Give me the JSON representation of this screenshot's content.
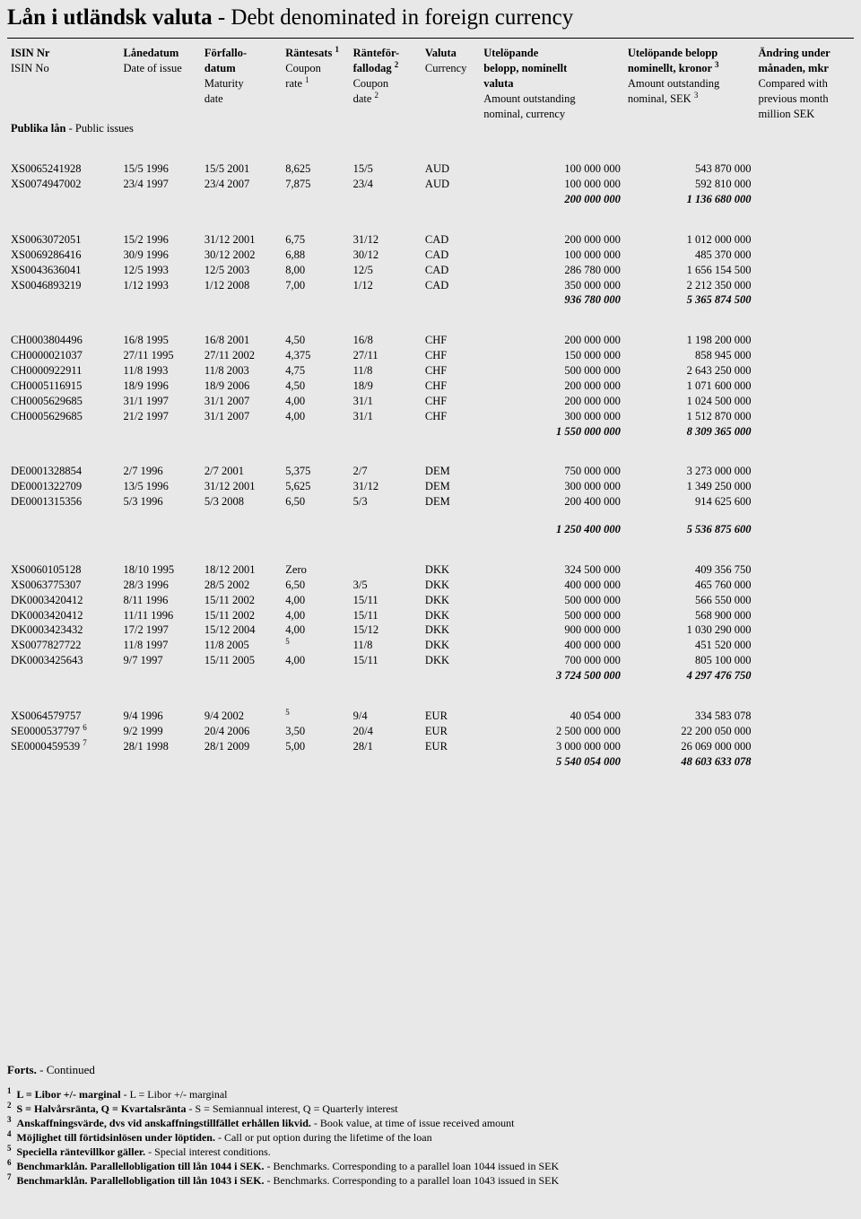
{
  "title": {
    "bold": "Lån i utländsk valuta",
    "rest": "  - Debt denominated in foreign currency"
  },
  "header": {
    "rows": [
      [
        {
          "t": "ISIN Nr",
          "b": true
        },
        {
          "t": "Lånedatum",
          "b": true
        },
        {
          "t": "Förfallo-",
          "b": true
        },
        {
          "t": "Räntesats <sup>1</sup>",
          "b": true
        },
        {
          "t": "Ränteför-",
          "b": true
        },
        {
          "t": "Valuta",
          "b": true
        },
        {
          "t": "Utelöpande",
          "b": true
        },
        {
          "t": "Utelöpande belopp",
          "b": true
        },
        {
          "t": "Ändring under",
          "b": true
        }
      ],
      [
        {
          "t": "ISIN No"
        },
        {
          "t": "Date of issue"
        },
        {
          "t": "datum",
          "b": true
        },
        {
          "t": "Coupon"
        },
        {
          "t": "fallodag <sup>2</sup>",
          "b": true
        },
        {
          "t": "Currency"
        },
        {
          "t": "belopp, nominellt",
          "b": true
        },
        {
          "t": "nominellt, kronor <sup>3</sup>",
          "b": true
        },
        {
          "t": "månaden, mkr",
          "b": true
        }
      ],
      [
        {
          "t": ""
        },
        {
          "t": ""
        },
        {
          "t": "Maturity"
        },
        {
          "t": "rate <sup>1</sup>"
        },
        {
          "t": "Coupon"
        },
        {
          "t": ""
        },
        {
          "t": "valuta",
          "b": true
        },
        {
          "t": "Amount outstanding"
        },
        {
          "t": "Compared with"
        }
      ],
      [
        {
          "t": ""
        },
        {
          "t": ""
        },
        {
          "t": "date"
        },
        {
          "t": ""
        },
        {
          "t": "date <sup>2</sup>"
        },
        {
          "t": ""
        },
        {
          "t": "Amount outstanding"
        },
        {
          "t": "nominal, SEK <sup>3</sup>"
        },
        {
          "t": "previous month"
        }
      ],
      [
        {
          "t": ""
        },
        {
          "t": ""
        },
        {
          "t": ""
        },
        {
          "t": ""
        },
        {
          "t": ""
        },
        {
          "t": ""
        },
        {
          "t": "nominal, currency"
        },
        {
          "t": ""
        },
        {
          "t": "million SEK"
        }
      ]
    ]
  },
  "subheader": {
    "bold": "Publika lån",
    "rest": " - Public issues"
  },
  "groups": [
    {
      "rows": [
        [
          "XS0065241928",
          "15/5 1996",
          "15/5 2001",
          "8,625",
          "15/5",
          "AUD",
          "100 000 000",
          "543 870 000",
          ""
        ],
        [
          "XS0074947002",
          "23/4 1997",
          "23/4 2007",
          "7,875",
          "23/4",
          "AUD",
          "100 000 000",
          "592 810 000",
          ""
        ]
      ],
      "total": [
        "",
        "",
        "",
        "",
        "",
        "",
        "200 000 000",
        "1 136 680 000",
        ""
      ]
    },
    {
      "rows": [
        [
          "XS0063072051",
          "15/2 1996",
          "31/12 2001",
          "6,75",
          "31/12",
          "CAD",
          "200 000 000",
          "1 012 000 000",
          ""
        ],
        [
          "XS0069286416",
          "30/9 1996",
          "30/12 2002",
          "6,88",
          "30/12",
          "CAD",
          "100 000 000",
          "485 370 000",
          ""
        ],
        [
          "XS0043636041",
          "12/5 1993",
          "12/5 2003",
          "8,00",
          "12/5",
          "CAD",
          "286 780 000",
          "1 656 154 500",
          ""
        ],
        [
          "XS0046893219",
          "1/12 1993",
          "1/12 2008",
          "7,00",
          "1/12",
          "CAD",
          "350 000 000",
          "2 212 350 000",
          ""
        ]
      ],
      "total": [
        "",
        "",
        "",
        "",
        "",
        "",
        "936 780 000",
        "5 365 874 500",
        ""
      ]
    },
    {
      "rows": [
        [
          "CH0003804496",
          "16/8 1995",
          "16/8 2001",
          "4,50",
          "16/8",
          "CHF",
          "200 000 000",
          "1 198 200 000",
          ""
        ],
        [
          "CH0000021037",
          "27/11 1995",
          "27/11 2002",
          "4,375",
          "27/11",
          "CHF",
          "150 000 000",
          "858 945 000",
          ""
        ],
        [
          "CH0000922911",
          "11/8 1993",
          "11/8 2003",
          "4,75",
          "11/8",
          "CHF",
          "500 000 000",
          "2 643 250 000",
          ""
        ],
        [
          "CH0005116915",
          "18/9 1996",
          "18/9 2006",
          "4,50",
          "18/9",
          "CHF",
          "200 000 000",
          "1 071 600 000",
          ""
        ],
        [
          "CH0005629685",
          "31/1 1997",
          "31/1 2007",
          "4,00",
          "31/1",
          "CHF",
          "200 000 000",
          "1 024 500 000",
          ""
        ],
        [
          "CH0005629685",
          "21/2 1997",
          "31/1 2007",
          "4,00",
          "31/1",
          "CHF",
          "300 000 000",
          "1 512 870 000",
          ""
        ]
      ],
      "total": [
        "",
        "",
        "",
        "",
        "",
        "",
        "1 550 000 000",
        "8 309 365 000",
        ""
      ]
    },
    {
      "rows": [
        [
          "DE0001328854",
          "2/7 1996",
          "2/7 2001",
          "5,375",
          "2/7",
          "DEM",
          "750 000 000",
          "3 273 000 000",
          ""
        ],
        [
          "DE0001322709",
          "13/5 1996",
          "31/12 2001",
          "5,625",
          "31/12",
          "DEM",
          "300 000 000",
          "1 349 250 000",
          ""
        ],
        [
          "DE0001315356",
          "5/3 1996",
          "5/3 2008",
          "6,50",
          "5/3",
          "DEM",
          "200 400 000",
          "914 625 600",
          ""
        ]
      ],
      "total_spaced": true,
      "total": [
        "",
        "",
        "",
        "",
        "",
        "",
        "1 250 400 000",
        "5 536 875 600",
        ""
      ]
    },
    {
      "rows": [
        [
          "XS0060105128",
          "18/10 1995",
          "18/12 2001",
          "Zero",
          "",
          "DKK",
          "324 500 000",
          "409 356 750",
          ""
        ],
        [
          "XS0063775307",
          "28/3 1996",
          "28/5 2002",
          "6,50",
          "3/5",
          "DKK",
          "400 000 000",
          "465 760 000",
          ""
        ],
        [
          "DK0003420412",
          "8/11 1996",
          "15/11 2002",
          "4,00",
          "15/11",
          "DKK",
          "500 000 000",
          "566 550 000",
          ""
        ],
        [
          "DK0003420412",
          "11/11 1996",
          "15/11 2002",
          "4,00",
          "15/11",
          "DKK",
          "500 000 000",
          "568 900 000",
          ""
        ],
        [
          "DK0003423432",
          "17/2 1997",
          "15/12 2004",
          "4,00",
          "15/12",
          "DKK",
          "900 000 000",
          "1 030 290 000",
          ""
        ],
        [
          "XS0077827722",
          "11/8 1997",
          "11/8 2005",
          "<sup>5</sup>",
          "11/8",
          "DKK",
          "400 000 000",
          "451 520 000",
          ""
        ],
        [
          "DK0003425643",
          "9/7 1997",
          "15/11 2005",
          "4,00",
          "15/11",
          "DKK",
          "700 000 000",
          "805 100 000",
          ""
        ]
      ],
      "total": [
        "",
        "",
        "",
        "",
        "",
        "",
        "3 724 500 000",
        "4 297 476 750",
        ""
      ]
    },
    {
      "rows": [
        [
          "XS0064579757",
          "9/4 1996",
          "9/4 2002",
          "<sup>5</sup>",
          "9/4",
          "EUR",
          "40 054 000",
          "334 583 078",
          ""
        ],
        [
          "SE0000537797 <sup>6</sup>",
          "9/2 1999",
          "20/4 2006",
          "3,50",
          "20/4",
          "EUR",
          "2 500 000 000",
          "22 200 050 000",
          ""
        ],
        [
          "SE0000459539 <sup>7</sup>",
          "28/1 1998",
          "28/1 2009",
          "5,00",
          "28/1",
          "EUR",
          "3 000 000 000",
          "26 069 000 000",
          ""
        ]
      ],
      "total": [
        "",
        "",
        "",
        "",
        "",
        "",
        "5 540 054 000",
        "48 603 633 078",
        ""
      ]
    }
  ],
  "forts": {
    "bold": "Forts.",
    "rest": " - Continued"
  },
  "footnotes": [
    {
      "n": "1",
      "bold": "L = Libor +/- marginal",
      "rest": " - L = Libor +/- marginal"
    },
    {
      "n": "2",
      "bold": "S = Halvårsränta, Q = Kvartalsränta",
      "rest": " - S = Semiannual interest, Q = Quarterly interest"
    },
    {
      "n": "3",
      "bold": "Anskaffningsvärde, dvs vid anskaffningstillfället erhållen likvid.",
      "rest": " - Book value, at time of issue received amount"
    },
    {
      "n": "4",
      "bold": "Möjlighet till förtidsinlösen under löptiden.",
      "rest": " - Call or put option during the lifetime of the loan"
    },
    {
      "n": "5",
      "bold": "Speciella räntevillkor gäller.",
      "rest": " - Special interest conditions."
    },
    {
      "n": "6",
      "bold": "Benchmarklån. Parallellobligation till lån 1044 i SEK.",
      "rest": " - Benchmarks. Corresponding to a parallel loan 1044 issued in SEK"
    },
    {
      "n": "7",
      "bold": "Benchmarklån. Parallellobligation till lån 1043 i SEK.",
      "rest": " - Benchmarks. Corresponding to a parallel loan 1043 issued in SEK"
    }
  ]
}
